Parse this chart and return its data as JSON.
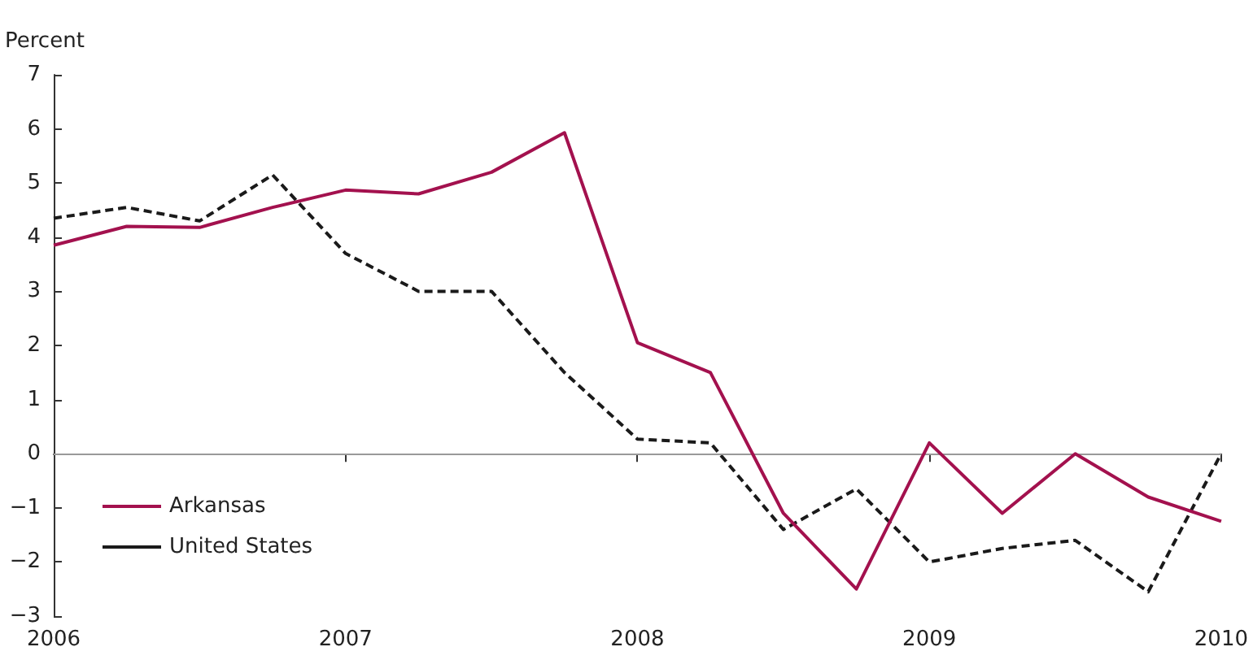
{
  "chart_data": {
    "type": "line",
    "ylabel": "Percent",
    "x": [
      2006,
      2006.25,
      2006.5,
      2006.75,
      2007,
      2007.25,
      2007.5,
      2007.75,
      2008,
      2008.25,
      2008.5,
      2008.75,
      2009,
      2009.25,
      2009.5,
      2009.75,
      2010
    ],
    "series": [
      {
        "name": "Arkansas",
        "color": "#a3114e",
        "line_style": "solid",
        "values": [
          3.85,
          4.2,
          4.18,
          4.55,
          4.87,
          4.8,
          5.2,
          5.93,
          2.05,
          1.5,
          -1.1,
          -2.5,
          0.2,
          -1.1,
          0.0,
          -0.8,
          -1.25
        ]
      },
      {
        "name": "United States",
        "color": "#1a1a1a",
        "line_style": "dashed",
        "values": [
          4.35,
          4.55,
          4.3,
          5.15,
          3.7,
          3.0,
          3.0,
          1.5,
          0.27,
          0.2,
          -1.4,
          -0.65,
          -2.0,
          -1.75,
          -1.6,
          -2.55,
          0.0
        ]
      }
    ],
    "xlim": [
      2006,
      2010
    ],
    "xticks": [
      2006,
      2007,
      2008,
      2009,
      2010
    ],
    "ylim": [
      -3,
      7
    ],
    "yticks": [
      -3,
      -2,
      -1,
      0,
      1,
      2,
      3,
      4,
      5,
      6,
      7
    ],
    "ref_lines": [
      {
        "axis": "y",
        "value": 0,
        "color": "#999999",
        "line_style": "solid"
      }
    ],
    "grid": false,
    "legend": "bottom left",
    "marker": "none"
  }
}
